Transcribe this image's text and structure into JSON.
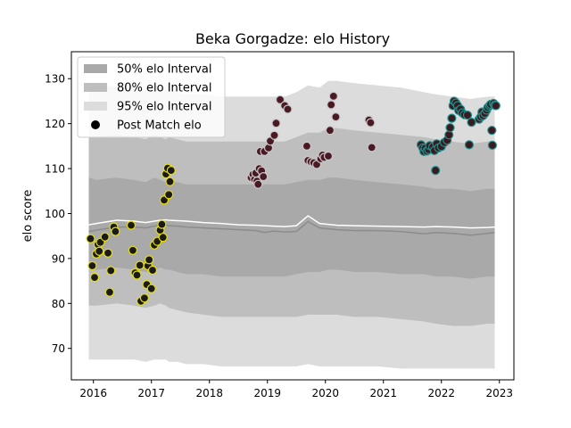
{
  "chart_data": {
    "type": "scatter",
    "title": "Beka Gorgadze: elo History",
    "xlabel": "",
    "ylabel": "elo score",
    "xlim": [
      2015.62,
      2023.25
    ],
    "ylim": [
      63,
      136
    ],
    "xticks": [
      2016,
      2017,
      2018,
      2019,
      2020,
      2021,
      2022,
      2023
    ],
    "yticks": [
      70,
      80,
      90,
      100,
      110,
      120,
      130
    ],
    "grid": false,
    "legend_position": "top-left",
    "legend": [
      {
        "label": "50% elo Interval",
        "kind": "band",
        "color": "#a9a9a9"
      },
      {
        "label": "80% elo Interval",
        "kind": "band",
        "color": "#bebebe"
      },
      {
        "label": "95% elo Interval",
        "kind": "band",
        "color": "#dcdcdc"
      },
      {
        "label": "Post Match elo",
        "kind": "marker",
        "color": "#000000"
      }
    ],
    "colors": {
      "mean_line": "#ffffff",
      "median_line": "#8c8c8c",
      "band_50": "#a9a9a9",
      "band_80": "#bebebe",
      "band_95": "#dcdcdc",
      "era1_fill": "#1a1a1a",
      "era1_edge": "#e8e000",
      "era2_fill": "#4a1a24",
      "era2_edge": "#c8c8c8",
      "era3_fill": "#3a1a20",
      "era3_edge": "#1f8f8a"
    },
    "series": [
      {
        "x": [
          2015.92,
          2016.05,
          2016.4,
          2016.7,
          2016.9,
          2017.05,
          2017.15,
          2017.25,
          2017.3,
          2017.45,
          2017.6,
          2017.9,
          2018.2,
          2018.5,
          2018.8,
          2018.95,
          2019.1,
          2019.3,
          2019.5,
          2019.7,
          2019.9,
          2020.05,
          2020.2,
          2020.5,
          2020.9,
          2021.3,
          2021.7,
          2021.9,
          2022.2,
          2022.5,
          2022.8,
          2022.92
        ],
        "upper95": [
          128,
          128,
          128.5,
          128,
          127.5,
          128.5,
          128,
          127.5,
          128,
          127,
          126.5,
          126.5,
          126,
          126,
          126,
          126,
          126,
          126,
          127,
          128.5,
          128,
          129.5,
          129.5,
          129,
          128.5,
          128,
          127,
          126.5,
          126,
          125.5,
          126,
          126
        ],
        "upper80": [
          117,
          117,
          117.5,
          117,
          116.5,
          117.5,
          117,
          116.5,
          117,
          116.5,
          116,
          116,
          116,
          116,
          116,
          116,
          116,
          116,
          117,
          118,
          118,
          119,
          119,
          118.5,
          118,
          117.5,
          117,
          116.5,
          116,
          115.5,
          116,
          116
        ],
        "upper50": [
          108,
          107.5,
          108,
          107.5,
          107,
          108,
          107.5,
          107,
          107,
          107,
          106.5,
          106.5,
          106.5,
          106.5,
          106.5,
          106.5,
          106.5,
          106.5,
          107,
          107.5,
          107.5,
          108,
          108,
          107.5,
          107,
          106.5,
          106,
          105.5,
          105.5,
          105,
          105.5,
          105.5
        ],
        "mean": [
          97.5,
          97.8,
          98.5,
          98.3,
          98,
          98.3,
          98.5,
          98.6,
          98.5,
          98.4,
          98.3,
          98,
          97.8,
          97.5,
          97.4,
          97.3,
          97.2,
          97.1,
          97.3,
          99.5,
          97.8,
          97.6,
          97.4,
          97.3,
          97.2,
          97.1,
          97,
          97.1,
          97,
          96.8,
          96.9,
          97
        ],
        "median": [
          96,
          96.3,
          97,
          97,
          96.8,
          97.2,
          97.5,
          97.5,
          97.3,
          97.2,
          97,
          96.8,
          96.6,
          96.4,
          96.2,
          95.8,
          96.1,
          95.9,
          96,
          98.2,
          96.8,
          96.6,
          96.4,
          96.2,
          96.2,
          96,
          95.5,
          95.8,
          95.6,
          95.2,
          95.6,
          95.8
        ],
        "lower50": [
          87.5,
          87.5,
          88,
          87.5,
          87,
          87.5,
          88,
          87.5,
          87.5,
          87,
          86.5,
          86.5,
          86,
          86,
          86,
          86,
          86,
          86,
          86.5,
          87,
          87,
          87.5,
          87.5,
          87,
          87,
          86.5,
          86.5,
          86,
          86,
          85.5,
          86,
          86
        ],
        "lower80": [
          79.5,
          79.5,
          80,
          79.5,
          79,
          79.5,
          80,
          79.5,
          79,
          78.5,
          78,
          77.5,
          77,
          77,
          77,
          77,
          77,
          77,
          77,
          77.5,
          77.5,
          77.5,
          77.5,
          77,
          77,
          76.5,
          76,
          75.5,
          75,
          75,
          75.5,
          75.5
        ],
        "lower95": [
          67.5,
          67.5,
          67.5,
          67.5,
          67,
          67.5,
          67.5,
          67.5,
          67,
          67,
          66.5,
          66.5,
          66,
          66,
          66,
          66,
          66,
          66,
          66,
          66.5,
          66,
          66,
          66,
          66,
          66,
          65.5,
          65.5,
          65.5,
          65.5,
          65.5,
          65.5,
          65.5
        ]
      }
    ],
    "points": [
      {
        "era": 1,
        "x": 2015.95,
        "y": 94.4
      },
      {
        "era": 1,
        "x": 2015.98,
        "y": 88.4
      },
      {
        "era": 1,
        "x": 2016.02,
        "y": 85.8
      },
      {
        "era": 1,
        "x": 2016.05,
        "y": 91.0
      },
      {
        "era": 1,
        "x": 2016.08,
        "y": 93.1
      },
      {
        "era": 1,
        "x": 2016.1,
        "y": 91.6
      },
      {
        "era": 1,
        "x": 2016.12,
        "y": 93.6
      },
      {
        "era": 1,
        "x": 2016.2,
        "y": 94.8
      },
      {
        "era": 1,
        "x": 2016.25,
        "y": 91.2
      },
      {
        "era": 1,
        "x": 2016.28,
        "y": 82.5
      },
      {
        "era": 1,
        "x": 2016.3,
        "y": 87.3
      },
      {
        "era": 1,
        "x": 2016.35,
        "y": 97.0
      },
      {
        "era": 1,
        "x": 2016.38,
        "y": 96.0
      },
      {
        "era": 1,
        "x": 2016.65,
        "y": 97.4
      },
      {
        "era": 1,
        "x": 2016.68,
        "y": 91.8
      },
      {
        "era": 1,
        "x": 2016.72,
        "y": 86.8
      },
      {
        "era": 1,
        "x": 2016.75,
        "y": 86.3
      },
      {
        "era": 1,
        "x": 2016.8,
        "y": 88.5
      },
      {
        "era": 1,
        "x": 2016.82,
        "y": 80.5
      },
      {
        "era": 1,
        "x": 2016.88,
        "y": 81.2
      },
      {
        "era": 1,
        "x": 2016.92,
        "y": 84.2
      },
      {
        "era": 1,
        "x": 2016.94,
        "y": 88.4
      },
      {
        "era": 1,
        "x": 2016.96,
        "y": 89.7
      },
      {
        "era": 1,
        "x": 2017.0,
        "y": 83.3
      },
      {
        "era": 1,
        "x": 2017.02,
        "y": 87.4
      },
      {
        "era": 1,
        "x": 2017.05,
        "y": 93.0
      },
      {
        "era": 1,
        "x": 2017.1,
        "y": 93.8
      },
      {
        "era": 1,
        "x": 2017.15,
        "y": 96.3
      },
      {
        "era": 1,
        "x": 2017.18,
        "y": 97.6
      },
      {
        "era": 1,
        "x": 2017.2,
        "y": 94.7
      },
      {
        "era": 1,
        "x": 2017.22,
        "y": 103.0
      },
      {
        "era": 1,
        "x": 2017.25,
        "y": 108.8
      },
      {
        "era": 1,
        "x": 2017.28,
        "y": 110.1
      },
      {
        "era": 1,
        "x": 2017.3,
        "y": 104.2
      },
      {
        "era": 1,
        "x": 2017.32,
        "y": 107.1
      },
      {
        "era": 1,
        "x": 2017.34,
        "y": 109.6
      },
      {
        "era": 2,
        "x": 2018.72,
        "y": 108.0
      },
      {
        "era": 2,
        "x": 2018.75,
        "y": 108.7
      },
      {
        "era": 2,
        "x": 2018.78,
        "y": 107.6
      },
      {
        "era": 2,
        "x": 2018.8,
        "y": 109.0
      },
      {
        "era": 2,
        "x": 2018.82,
        "y": 107.2
      },
      {
        "era": 2,
        "x": 2018.84,
        "y": 106.5
      },
      {
        "era": 2,
        "x": 2018.86,
        "y": 110.0
      },
      {
        "era": 2,
        "x": 2018.88,
        "y": 113.8
      },
      {
        "era": 2,
        "x": 2018.9,
        "y": 109.5
      },
      {
        "era": 2,
        "x": 2018.93,
        "y": 108.2
      },
      {
        "era": 2,
        "x": 2018.95,
        "y": 113.8
      },
      {
        "era": 2,
        "x": 2019.02,
        "y": 114.6
      },
      {
        "era": 2,
        "x": 2019.05,
        "y": 116.1
      },
      {
        "era": 2,
        "x": 2019.12,
        "y": 117.4
      },
      {
        "era": 2,
        "x": 2019.15,
        "y": 120.1
      },
      {
        "era": 2,
        "x": 2019.22,
        "y": 125.3
      },
      {
        "era": 2,
        "x": 2019.3,
        "y": 124.0
      },
      {
        "era": 2,
        "x": 2019.35,
        "y": 123.2
      },
      {
        "era": 2,
        "x": 2019.68,
        "y": 115.0
      },
      {
        "era": 2,
        "x": 2019.7,
        "y": 111.8
      },
      {
        "era": 2,
        "x": 2019.75,
        "y": 111.5
      },
      {
        "era": 2,
        "x": 2019.8,
        "y": 111.3
      },
      {
        "era": 2,
        "x": 2019.85,
        "y": 110.9
      },
      {
        "era": 2,
        "x": 2019.92,
        "y": 112.2
      },
      {
        "era": 2,
        "x": 2019.95,
        "y": 113.0
      },
      {
        "era": 2,
        "x": 2019.98,
        "y": 112.5
      },
      {
        "era": 2,
        "x": 2020.05,
        "y": 112.8
      },
      {
        "era": 2,
        "x": 2020.08,
        "y": 118.5
      },
      {
        "era": 2,
        "x": 2020.1,
        "y": 124.2
      },
      {
        "era": 2,
        "x": 2020.14,
        "y": 126.1
      },
      {
        "era": 2,
        "x": 2020.18,
        "y": 121.5
      },
      {
        "era": 2,
        "x": 2020.75,
        "y": 120.8
      },
      {
        "era": 2,
        "x": 2020.78,
        "y": 120.2
      },
      {
        "era": 2,
        "x": 2020.8,
        "y": 114.7
      },
      {
        "era": 3,
        "x": 2021.65,
        "y": 115.3
      },
      {
        "era": 3,
        "x": 2021.68,
        "y": 114.6
      },
      {
        "era": 3,
        "x": 2021.7,
        "y": 113.8
      },
      {
        "era": 3,
        "x": 2021.72,
        "y": 114.5
      },
      {
        "era": 3,
        "x": 2021.75,
        "y": 113.9
      },
      {
        "era": 3,
        "x": 2021.78,
        "y": 114.2
      },
      {
        "era": 3,
        "x": 2021.8,
        "y": 115.1
      },
      {
        "era": 3,
        "x": 2021.85,
        "y": 114.8
      },
      {
        "era": 3,
        "x": 2021.88,
        "y": 114.0
      },
      {
        "era": 3,
        "x": 2021.9,
        "y": 109.6
      },
      {
        "era": 3,
        "x": 2021.92,
        "y": 115.5
      },
      {
        "era": 3,
        "x": 2021.95,
        "y": 114.6
      },
      {
        "era": 3,
        "x": 2022.0,
        "y": 114.9
      },
      {
        "era": 3,
        "x": 2022.05,
        "y": 115.8
      },
      {
        "era": 3,
        "x": 2022.1,
        "y": 116.3
      },
      {
        "era": 3,
        "x": 2022.13,
        "y": 117.5
      },
      {
        "era": 3,
        "x": 2022.15,
        "y": 119.1
      },
      {
        "era": 3,
        "x": 2022.18,
        "y": 121.2
      },
      {
        "era": 3,
        "x": 2022.2,
        "y": 124.0
      },
      {
        "era": 3,
        "x": 2022.22,
        "y": 125.0
      },
      {
        "era": 3,
        "x": 2022.25,
        "y": 124.6
      },
      {
        "era": 3,
        "x": 2022.28,
        "y": 124.0
      },
      {
        "era": 3,
        "x": 2022.3,
        "y": 122.9
      },
      {
        "era": 3,
        "x": 2022.33,
        "y": 123.2
      },
      {
        "era": 3,
        "x": 2022.36,
        "y": 122.4
      },
      {
        "era": 3,
        "x": 2022.4,
        "y": 122.0
      },
      {
        "era": 3,
        "x": 2022.45,
        "y": 121.9
      },
      {
        "era": 3,
        "x": 2022.48,
        "y": 115.3
      },
      {
        "era": 3,
        "x": 2022.52,
        "y": 120.3
      },
      {
        "era": 3,
        "x": 2022.65,
        "y": 121.0
      },
      {
        "era": 3,
        "x": 2022.68,
        "y": 121.5
      },
      {
        "era": 3,
        "x": 2022.7,
        "y": 122.6
      },
      {
        "era": 3,
        "x": 2022.72,
        "y": 121.8
      },
      {
        "era": 3,
        "x": 2022.75,
        "y": 122.3
      },
      {
        "era": 3,
        "x": 2022.78,
        "y": 123.0
      },
      {
        "era": 3,
        "x": 2022.8,
        "y": 123.6
      },
      {
        "era": 3,
        "x": 2022.83,
        "y": 124.0
      },
      {
        "era": 3,
        "x": 2022.85,
        "y": 124.3
      },
      {
        "era": 3,
        "x": 2022.87,
        "y": 118.5
      },
      {
        "era": 3,
        "x": 2022.88,
        "y": 115.2
      },
      {
        "era": 3,
        "x": 2022.9,
        "y": 124.5
      },
      {
        "era": 3,
        "x": 2022.92,
        "y": 124.1
      },
      {
        "era": 3,
        "x": 2022.94,
        "y": 124.0
      }
    ]
  }
}
